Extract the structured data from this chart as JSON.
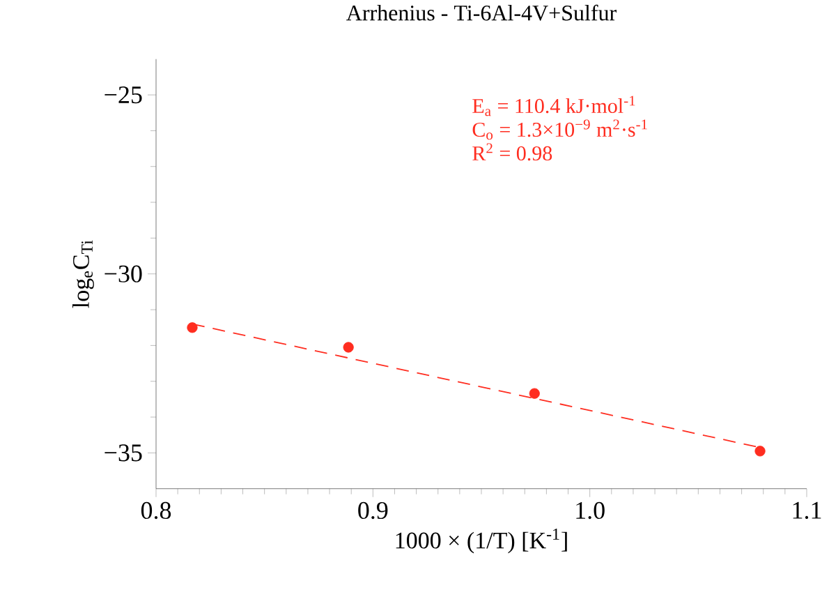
{
  "chart_data": {
    "type": "scatter",
    "title": "Arrhenius - Ti-6Al-4V+Sulfur",
    "xlabel": "1000 × (1/T) [K$^{-1}$]",
    "ylabel": "log$_{e}$C$_{Ti}$",
    "annotations": [
      "E$_{a}$ = 110.4 kJ·mol$^{-1}$",
      "C$_{o}$ = 1.3×10$^{−9}$ m$^{2}$·s$^{-1}$",
      "R$^{2}$ = 0.98"
    ],
    "xlim": [
      0.8,
      1.1
    ],
    "xticks": [
      0.8,
      0.9,
      {
        "value": 1.0,
        "label": "1.0"
      },
      1.1
    ],
    "ylim": [
      -36,
      -24
    ],
    "yticks": [
      {
        "value": -35,
        "label": "−35"
      },
      {
        "value": -30,
        "label": "−30"
      },
      {
        "value": -25,
        "label": "−25"
      }
    ],
    "series": [
      {
        "color": "#ff2d20",
        "marker": "circle",
        "x": [
          0.8167,
          0.8887,
          0.9745,
          1.0785
        ],
        "values": [
          -31.5,
          -32.05,
          -33.34,
          -34.95
        ]
      },
      {
        "type": "line",
        "color": "#ff2d20",
        "marker": "none",
        "line_style": "dashed",
        "x": [
          0.8167,
          1.0785
        ],
        "values": [
          -31.4,
          -34.85
        ]
      }
    ]
  }
}
